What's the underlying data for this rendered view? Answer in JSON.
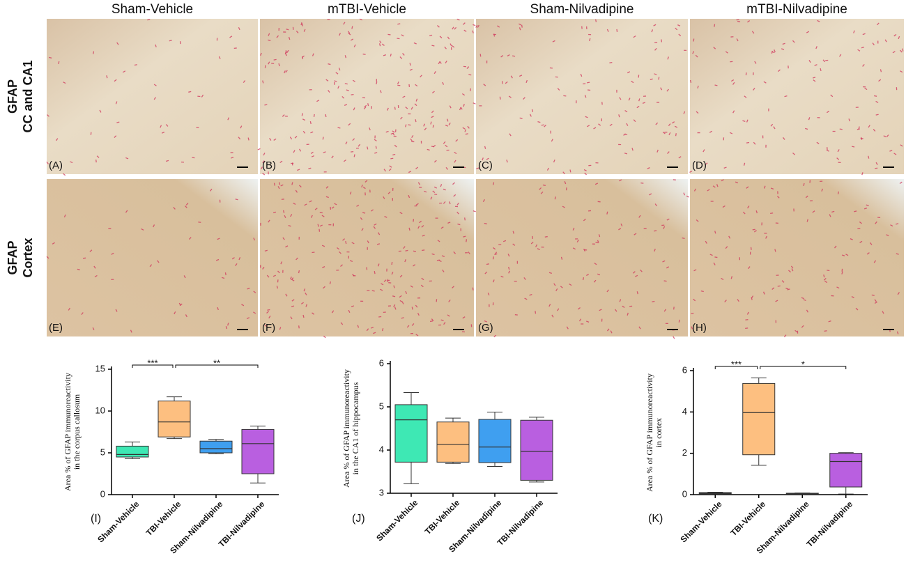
{
  "columns": [
    "Sham-Vehicle",
    "mTBI-Vehicle",
    "Sham-Nilvadipine",
    "mTBI-Nilvadipine"
  ],
  "rows": [
    [
      "GFAP",
      "CC and CA1"
    ],
    [
      "GFAP",
      "Cortex"
    ]
  ],
  "panels": [
    "(A)",
    "(B)",
    "(C)",
    "(D)",
    "(E)",
    "(F)",
    "(G)",
    "(H)"
  ],
  "chart_data": [
    {
      "type": "box",
      "panel": "(I)",
      "ylabel": [
        "Area % of GFAP immunoreactivity",
        "in the corpus callosum"
      ],
      "categories": [
        "Sham-Vehicle",
        "TBI-Vehicle",
        "Sham-Nilvadipine",
        "TBI-Nilvadipine"
      ],
      "colors": [
        "#3ee8b4",
        "#fdbf80",
        "#3f9ff0",
        "#b95fe0"
      ],
      "boxes": [
        [
          4.3,
          4.5,
          4.8,
          5.8,
          6.3
        ],
        [
          6.7,
          6.9,
          8.7,
          11.2,
          11.7
        ],
        [
          4.9,
          5.0,
          5.5,
          6.4,
          6.6
        ],
        [
          1.4,
          2.5,
          6.1,
          7.8,
          8.2
        ]
      ],
      "annotations": [
        "***",
        "**"
      ],
      "ylim": [
        0,
        15
      ],
      "yticks": [
        0,
        5,
        10,
        15
      ]
    },
    {
      "type": "box",
      "panel": "(J)",
      "ylabel": [
        "Area % of GFAP immunoreactivity",
        "in the CA1 of hippocampus"
      ],
      "categories": [
        "Sham-Vehicle",
        "TBI-Vehicle",
        "Sham-Nilvadipine",
        "TBI-Nilvadipine"
      ],
      "colors": [
        "#3ee8b4",
        "#fdbf80",
        "#3f9ff0",
        "#b95fe0"
      ],
      "boxes": [
        [
          3.22,
          3.72,
          4.7,
          5.05,
          5.33
        ],
        [
          3.69,
          3.72,
          4.13,
          4.65,
          4.74
        ],
        [
          3.62,
          3.71,
          4.07,
          4.71,
          4.88
        ],
        [
          3.26,
          3.3,
          3.97,
          4.69,
          4.76
        ]
      ],
      "annotations": [],
      "ylim": [
        3,
        6
      ],
      "yticks": [
        3,
        4,
        5,
        6
      ]
    },
    {
      "type": "box",
      "panel": "(K)",
      "ylabel": [
        "Area % of GFAP immunoreactivity",
        "in cortex"
      ],
      "categories": [
        "Sham-Vehicle",
        "TBI-Vehicle",
        "Sham-Nilvadipine",
        "TBI-Nilvadipine"
      ],
      "colors": [
        "#3ee8b4",
        "#fdbf80",
        "#3f9ff0",
        "#b95fe0"
      ],
      "boxes": [
        [
          0.02,
          0.04,
          0.07,
          0.1,
          0.12
        ],
        [
          1.42,
          1.93,
          3.97,
          5.38,
          5.65
        ],
        [
          0.02,
          0.03,
          0.05,
          0.07,
          0.08
        ],
        [
          0.03,
          0.37,
          1.6,
          2.0,
          2.03
        ]
      ],
      "annotations": [
        "***",
        "*"
      ],
      "ylim": [
        0,
        6
      ],
      "yticks": [
        0,
        2,
        4,
        6
      ]
    }
  ]
}
